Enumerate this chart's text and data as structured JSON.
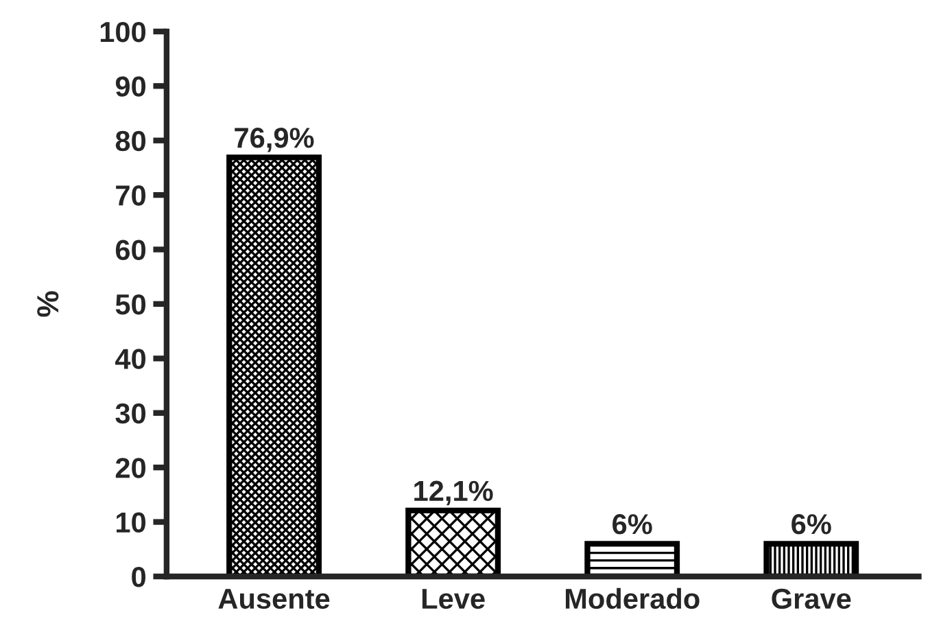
{
  "chart_data": {
    "type": "bar",
    "ylabel": "%",
    "categories": [
      "Ausente",
      "Leve",
      "Moderado",
      "Grave"
    ],
    "values": [
      76.9,
      12.1,
      6,
      6
    ],
    "value_labels": [
      "76,9%",
      "12,1%",
      "6%",
      "6%"
    ],
    "ylim": [
      0,
      100
    ],
    "yticks": [
      0,
      10,
      20,
      30,
      40,
      50,
      60,
      70,
      80,
      90,
      100
    ],
    "grid": false
  }
}
